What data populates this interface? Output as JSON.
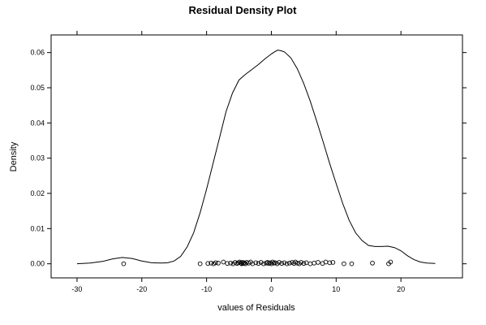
{
  "chart_data": {
    "type": "line",
    "title": "Residual Density Plot",
    "xlabel": "values of Residuals",
    "ylabel": "Density",
    "xlim": [
      -34,
      29.5
    ],
    "ylim": [
      -0.004,
      0.065
    ],
    "xticks": [
      -30,
      -20,
      -10,
      0,
      10,
      20
    ],
    "yticks": [
      0.0,
      0.01,
      0.02,
      0.03,
      0.04,
      0.05,
      0.06
    ],
    "ytick_labels": [
      "0.00",
      "0.01",
      "0.02",
      "0.03",
      "0.04",
      "0.05",
      "0.06"
    ],
    "grid": false,
    "legend": "none",
    "series": [
      {
        "kind": "density-line",
        "x": [
          -30,
          -28,
          -26,
          -24.5,
          -23,
          -21.5,
          -20,
          -18.5,
          -17,
          -16,
          -15,
          -14,
          -13,
          -12,
          -11,
          -10,
          -9,
          -8,
          -7,
          -6,
          -5,
          -4,
          -3,
          -2,
          -1,
          0,
          0.5,
          1,
          1.5,
          2,
          3,
          4,
          5,
          6,
          7,
          8,
          9,
          10,
          11,
          12,
          13,
          14,
          15,
          16,
          17,
          18,
          19,
          20,
          21,
          22,
          23,
          24,
          25.3
        ],
        "y": [
          0.0,
          0.0002,
          0.0007,
          0.0014,
          0.0018,
          0.0015,
          0.0008,
          0.0003,
          0.0002,
          0.0003,
          0.0008,
          0.0021,
          0.0048,
          0.0088,
          0.0145,
          0.0212,
          0.0285,
          0.0358,
          0.0432,
          0.0485,
          0.0522,
          0.0538,
          0.0552,
          0.0566,
          0.0582,
          0.0596,
          0.0602,
          0.0607,
          0.0605,
          0.0602,
          0.0585,
          0.0554,
          0.0512,
          0.0462,
          0.0405,
          0.0346,
          0.0285,
          0.0228,
          0.0172,
          0.0124,
          0.0088,
          0.0066,
          0.0052,
          0.0049,
          0.0049,
          0.005,
          0.0046,
          0.0037,
          0.0023,
          0.0012,
          0.0005,
          0.0002,
          0.0001
        ]
      },
      {
        "kind": "residual-points",
        "x": [
          -22.8,
          -11,
          -9.8,
          -9.3,
          -8.9,
          -8.6,
          -8.2,
          -7.4,
          -6.8,
          -6.3,
          -5.9,
          -5.6,
          -5.3,
          -5.1,
          -4.9,
          -4.7,
          -4.6,
          -4.5,
          -4.3,
          -4.2,
          -4.0,
          -3.8,
          -3.5,
          -3.2,
          -2.9,
          -2.4,
          -2.0,
          -1.6,
          -1.2,
          -0.8,
          -0.6,
          -0.4,
          -0.2,
          0.0,
          0.2,
          0.4,
          0.6,
          0.9,
          1.2,
          1.6,
          2.0,
          2.4,
          2.8,
          3.2,
          3.5,
          3.7,
          4.0,
          4.3,
          4.6,
          5.0,
          5.4,
          6.0,
          6.6,
          7.2,
          7.9,
          8.4,
          9.0,
          9.5,
          11.2,
          12.4,
          15.6,
          18.1,
          18.4
        ],
        "y": [
          0.0,
          0.0,
          0.0001,
          0.0002,
          0.0,
          0.0003,
          0.0002,
          0.0005,
          0.0001,
          0.0002,
          0.0,
          0.0004,
          0.0001,
          0.0003,
          0.0005,
          0.0002,
          0.0,
          0.0004,
          0.0001,
          0.0003,
          0.0,
          0.0004,
          0.0002,
          0.0005,
          0.0,
          0.0003,
          0.0001,
          0.0004,
          0.0,
          0.0002,
          0.0004,
          0.0001,
          0.0003,
          0.0,
          0.0005,
          0.0002,
          0.0003,
          0.0,
          0.0004,
          0.0001,
          0.0003,
          0.0,
          0.0002,
          0.0004,
          0.0001,
          0.0005,
          0.0002,
          0.0,
          0.0004,
          0.0001,
          0.0003,
          0.0,
          0.0002,
          0.0004,
          0.0001,
          0.0005,
          0.0003,
          0.0004,
          0.0,
          0.0,
          0.0002,
          0.0,
          0.0005
        ]
      }
    ]
  }
}
